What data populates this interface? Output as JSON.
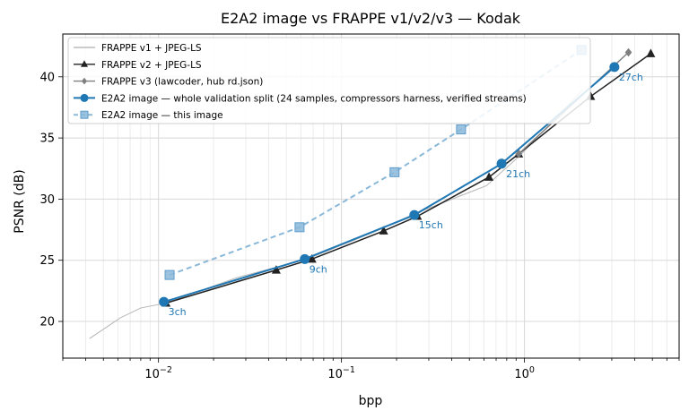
{
  "chart_data": {
    "type": "line",
    "title": "E2A2 image vs FRAPPE v1/v2/v3 — Kodak",
    "xlabel": "bpp",
    "ylabel": "PSNR (dB)",
    "xscale": "log",
    "xlim": [
      0.003,
      7.0
    ],
    "ylim": [
      17.0,
      43.5
    ],
    "xticks": [
      {
        "value": 0.01,
        "label": "10",
        "exp": "−2"
      },
      {
        "value": 0.1,
        "label": "10",
        "exp": "−1"
      },
      {
        "value": 1,
        "label": "10",
        "exp": "0"
      }
    ],
    "yticks": [
      20,
      25,
      30,
      35,
      40
    ],
    "grid": true,
    "legend_position": "top-left",
    "series": [
      {
        "name": "FRAPPE v1 + JPEG-LS",
        "color": "#bbbbbb",
        "marker": "none",
        "dash": "solid",
        "x": [
          0.0042,
          0.0062,
          0.008,
          0.011,
          0.027,
          0.065,
          0.15,
          0.26,
          0.62,
          0.95,
          2.1
        ],
        "y": [
          18.6,
          20.3,
          21.1,
          21.5,
          23.6,
          25.1,
          27.3,
          28.9,
          31.1,
          33.6,
          39.0
        ]
      },
      {
        "name": "FRAPPE v2 + JPEG-LS",
        "color": "#222222",
        "marker": "triangle",
        "dash": "solid",
        "x": [
          0.011,
          0.044,
          0.069,
          0.17,
          0.26,
          0.64,
          0.93,
          2.3,
          4.9
        ],
        "y": [
          21.5,
          24.2,
          25.1,
          27.4,
          28.6,
          31.8,
          33.7,
          38.4,
          41.9
        ]
      },
      {
        "name": "FRAPPE v3 (lawcoder, hub rd.json)",
        "color": "#7f7f7f",
        "marker": "diamond",
        "dash": "solid",
        "x": [
          0.93,
          3.7
        ],
        "y": [
          33.7,
          42.0
        ]
      },
      {
        "name": "E2A2 image — whole validation split (24 samples, compressors harness, verified streams)",
        "color": "#1f77b4",
        "marker": "circle",
        "dash": "solid",
        "x": [
          0.0107,
          0.063,
          0.25,
          0.75,
          3.1
        ],
        "y": [
          21.6,
          25.1,
          28.7,
          32.9,
          40.8
        ]
      },
      {
        "name": "E2A2 image — this image",
        "color": "#8ab8d9",
        "marker": "square",
        "dash": "dashed",
        "x": [
          0.0115,
          0.059,
          0.195,
          0.45,
          2.05
        ],
        "y": [
          23.8,
          27.7,
          32.2,
          35.7,
          42.2
        ]
      }
    ],
    "annotations": [
      {
        "text": "3ch",
        "x": 0.0107,
        "y": 21.6
      },
      {
        "text": "9ch",
        "x": 0.063,
        "y": 25.1
      },
      {
        "text": "15ch",
        "x": 0.25,
        "y": 28.7
      },
      {
        "text": "21ch",
        "x": 0.75,
        "y": 32.9
      },
      {
        "text": "27ch",
        "x": 3.1,
        "y": 40.8
      }
    ]
  }
}
